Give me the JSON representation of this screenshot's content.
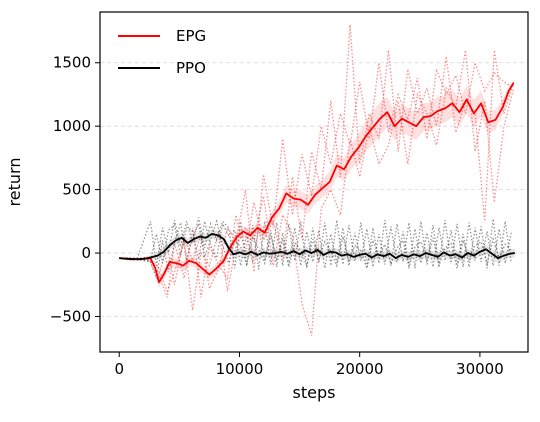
{
  "chart_data": {
    "type": "line",
    "title": "",
    "xlabel": "steps",
    "ylabel": "return",
    "xlim": [
      -1600,
      34000
    ],
    "ylim": [
      -780,
      1900
    ],
    "xticks": [
      0,
      10000,
      20000,
      30000
    ],
    "xtick_labels": [
      "0",
      "10000",
      "20000",
      "30000"
    ],
    "yticks": [
      -500,
      0,
      500,
      1000,
      1500
    ],
    "ytick_labels": [
      "−500",
      "0",
      "500",
      "1000",
      "1500"
    ],
    "grid": "horizontal dashed",
    "legend_position": "top-left",
    "series": [
      {
        "name": "EPG",
        "color": "#ff0000",
        "x": [
          0,
          1000,
          2000,
          2600,
          3000,
          3300,
          3700,
          4200,
          4800,
          5300,
          5800,
          6400,
          7000,
          7500,
          8100,
          8700,
          9200,
          9800,
          10300,
          10900,
          11500,
          12100,
          12700,
          13300,
          13900,
          14500,
          15100,
          15700,
          16300,
          16900,
          17500,
          18100,
          18700,
          19300,
          19900,
          20500,
          21100,
          21700,
          22300,
          22900,
          23500,
          24100,
          24700,
          25300,
          25900,
          26500,
          27100,
          27700,
          28300,
          28900,
          29500,
          30100,
          30700,
          31300,
          31900,
          32400,
          32800
        ],
        "values": [
          -40,
          -50,
          -45,
          -40,
          -120,
          -230,
          -170,
          -70,
          -80,
          -100,
          -60,
          -80,
          -130,
          -170,
          -120,
          -60,
          40,
          130,
          170,
          140,
          200,
          160,
          280,
          350,
          470,
          430,
          420,
          380,
          460,
          510,
          560,
          690,
          660,
          760,
          830,
          920,
          990,
          1060,
          1110,
          1000,
          1060,
          1030,
          1000,
          1070,
          1080,
          1120,
          1140,
          1180,
          1110,
          1210,
          1100,
          1180,
          1030,
          1050,
          1150,
          1280,
          1340
        ],
        "band_half_width": [
          10,
          10,
          10,
          15,
          25,
          40,
          40,
          40,
          40,
          40,
          40,
          40,
          40,
          40,
          40,
          40,
          40,
          45,
          45,
          45,
          45,
          45,
          50,
          60,
          70,
          70,
          70,
          70,
          70,
          70,
          80,
          90,
          90,
          100,
          110,
          120,
          130,
          130,
          120,
          110,
          110,
          110,
          110,
          110,
          110,
          110,
          110,
          110,
          110,
          110,
          110,
          100,
          90,
          80,
          60,
          40,
          20
        ]
      },
      {
        "name": "PPO",
        "color": "#000000",
        "x": [
          0,
          800,
          1600,
          2400,
          2800,
          3200,
          3700,
          4200,
          4700,
          5200,
          5700,
          6200,
          6700,
          7200,
          7700,
          8200,
          8700,
          9100,
          9500,
          10000,
          10500,
          11000,
          11500,
          12000,
          12500,
          13000,
          13500,
          14000,
          14500,
          15000,
          15500,
          16000,
          16500,
          17000,
          17500,
          18000,
          18500,
          19000,
          19500,
          20000,
          20500,
          21000,
          21500,
          22000,
          22500,
          23000,
          23500,
          24000,
          24500,
          25000,
          25500,
          26000,
          26500,
          27000,
          27500,
          28000,
          28500,
          29000,
          29500,
          30000,
          30500,
          31000,
          31500,
          32000,
          32500,
          32900
        ],
        "values": [
          -40,
          -45,
          -50,
          -40,
          -30,
          -20,
          10,
          60,
          100,
          120,
          80,
          110,
          130,
          120,
          150,
          140,
          110,
          40,
          -10,
          5,
          -10,
          10,
          -15,
          5,
          -5,
          0,
          10,
          -5,
          15,
          -10,
          20,
          0,
          25,
          -15,
          10,
          5,
          -20,
          -10,
          -30,
          -15,
          -5,
          -35,
          -10,
          -25,
          -5,
          -40,
          -15,
          -30,
          -10,
          -25,
          0,
          -15,
          -30,
          5,
          -20,
          -10,
          -35,
          0,
          -20,
          10,
          30,
          -5,
          -40,
          -20,
          -5,
          0
        ],
        "band_half_width": [
          5,
          5,
          5,
          10,
          20,
          30,
          35,
          35,
          35,
          35,
          35,
          35,
          35,
          35,
          35,
          35,
          35,
          35,
          35,
          35,
          35,
          35,
          35,
          35,
          35,
          35,
          35,
          35,
          35,
          35,
          35,
          35,
          35,
          35,
          35,
          35,
          35,
          35,
          35,
          35,
          35,
          35,
          35,
          35,
          35,
          35,
          35,
          35,
          35,
          35,
          35,
          35,
          35,
          35,
          35,
          35,
          35,
          35,
          35,
          35,
          35,
          35,
          35,
          35,
          35,
          35
        ]
      }
    ],
    "individual_runs": [
      {
        "group": "EPG",
        "color": "#ff0000",
        "x": [
          0,
          1500,
          2500,
          3200,
          4000,
          4600,
          5400,
          6100,
          6800,
          7500,
          8300,
          9000,
          9700,
          10500,
          11200,
          12000,
          12800,
          13600,
          14400,
          15200,
          16000,
          16800,
          17600,
          18400,
          19200,
          20000,
          20800,
          21600,
          22400,
          23200,
          24000,
          24800,
          25600,
          26400,
          27200,
          28000,
          28800,
          29600,
          30400,
          31200,
          32000,
          32800
        ],
        "values": [
          -40,
          -45,
          -50,
          -200,
          50,
          -250,
          120,
          -60,
          150,
          -280,
          -120,
          200,
          100,
          500,
          -150,
          620,
          200,
          900,
          300,
          780,
          450,
          1000,
          700,
          1100,
          850,
          1350,
          900,
          1500,
          950,
          1250,
          1050,
          1380,
          900,
          1450,
          1250,
          1400,
          1100,
          1500,
          1280,
          1420,
          1350,
          1300
        ]
      },
      {
        "group": "EPG",
        "color": "#ff0000",
        "x": [
          0,
          1500,
          2500,
          3200,
          4000,
          4600,
          5400,
          6100,
          6800,
          7500,
          8300,
          9000,
          9700,
          10500,
          11200,
          12000,
          12800,
          13600,
          14400,
          15200,
          16000,
          16800,
          17600,
          18400,
          19200,
          20000,
          20800,
          21600,
          22400,
          23200,
          24000,
          24800,
          25600,
          26400,
          27200,
          28000,
          28800,
          29600,
          30400,
          31200,
          32000,
          32800
        ],
        "values": [
          -40,
          -40,
          -30,
          -150,
          -350,
          80,
          -200,
          200,
          -350,
          50,
          -100,
          -200,
          300,
          0,
          400,
          100,
          250,
          -50,
          600,
          100,
          800,
          500,
          1200,
          600,
          1800,
          700,
          1100,
          900,
          1600,
          800,
          1450,
          1100,
          1300,
          1000,
          1550,
          950,
          1200,
          1100,
          250,
          1600,
          1100,
          1350
        ]
      },
      {
        "group": "EPG",
        "color": "#ff0000",
        "x": [
          0,
          1500,
          2500,
          3200,
          4000,
          4600,
          5400,
          6100,
          6800,
          7500,
          8300,
          9000,
          9700,
          10500,
          11200,
          12000,
          12800,
          13600,
          14400,
          15200,
          16000,
          16800,
          17600,
          18400,
          19200,
          20000,
          20800,
          21600,
          22400,
          23200,
          24000,
          24800,
          25600,
          26400,
          27200,
          28000,
          28800,
          29600,
          30400,
          31200,
          32000,
          32800
        ],
        "values": [
          -40,
          -50,
          -60,
          -100,
          -300,
          -150,
          100,
          -450,
          0,
          -100,
          180,
          -300,
          50,
          200,
          100,
          450,
          -100,
          300,
          150,
          -400,
          -650,
          350,
          500,
          300,
          900,
          600,
          1000,
          700,
          850,
          1200,
          700,
          1250,
          1100,
          850,
          1300,
          1150,
          1600,
          800,
          1200,
          400,
          1000,
          1300
        ]
      },
      {
        "group": "PPO",
        "color": "#404040",
        "x": [
          0,
          1500,
          2600,
          3100,
          3600,
          4100,
          4600,
          5100,
          5600,
          6100,
          6600,
          7100,
          7600,
          8100,
          8600,
          9100,
          9600,
          10100,
          10600,
          11100,
          11600,
          12100,
          12600,
          13100,
          13600,
          14100,
          14600,
          15100,
          15600,
          16100,
          16600,
          17100,
          17600,
          18100,
          18600,
          19100,
          19600,
          20100,
          20600,
          21100,
          21600,
          22100,
          22600,
          23100,
          23600,
          24100,
          24600,
          25100,
          25600,
          26100,
          26600,
          27100,
          27600,
          28100,
          28600,
          29100,
          29600,
          30100,
          30600,
          31100,
          31600,
          32100,
          32600
        ],
        "values": [
          -40,
          -40,
          250,
          -100,
          200,
          0,
          260,
          50,
          250,
          80,
          280,
          40,
          230,
          100,
          250,
          200,
          -120,
          250,
          -100,
          220,
          -130,
          250,
          -90,
          240,
          -100,
          230,
          -60,
          250,
          -120,
          200,
          -80,
          240,
          -100,
          260,
          -90,
          220,
          -60,
          240,
          -110,
          200,
          -80,
          260,
          -100,
          230,
          -70,
          240,
          -120,
          250,
          -90,
          220,
          -100,
          260,
          -80,
          230,
          -110,
          240,
          -60,
          210,
          -120,
          270,
          -100,
          250,
          -80
        ]
      },
      {
        "group": "PPO",
        "color": "#404040",
        "x": [
          0,
          1500,
          2600,
          3100,
          3600,
          4100,
          4600,
          5100,
          5600,
          6100,
          6600,
          7100,
          7600,
          8100,
          8600,
          9100,
          9600,
          10100,
          10600,
          11100,
          11600,
          12100,
          12600,
          13100,
          13600,
          14100,
          14600,
          15100,
          15600,
          16100,
          16600,
          17100,
          17600,
          18100,
          18600,
          19100,
          19600,
          20100,
          20600,
          21100,
          21600,
          22100,
          22600,
          23100,
          23600,
          24100,
          24600,
          25100,
          25600,
          26100,
          26600,
          27100,
          27600,
          28100,
          28600,
          29100,
          29600,
          30100,
          30600,
          31100,
          31600,
          32100,
          32600
        ],
        "values": [
          -40,
          -45,
          -60,
          150,
          -80,
          180,
          220,
          -20,
          200,
          180,
          -50,
          250,
          60,
          -40,
          230,
          140,
          180,
          -100,
          150,
          -80,
          200,
          -60,
          180,
          -110,
          160,
          -90,
          200,
          -100,
          170,
          -70,
          180,
          -120,
          150,
          -80,
          200,
          -100,
          160,
          -60,
          190,
          -110,
          150,
          -90,
          210,
          -70,
          170,
          -100,
          190,
          -80,
          160,
          -110,
          200,
          -60,
          180,
          -90,
          150,
          -110,
          200,
          -70,
          170,
          -100,
          190,
          -80,
          160
        ]
      },
      {
        "group": "PPO",
        "color": "#404040",
        "x": [
          0,
          1500,
          2600,
          3100,
          3600,
          4100,
          4600,
          5100,
          5600,
          6100,
          6600,
          7100,
          7600,
          8100,
          8600,
          9100,
          9600,
          10100,
          10600,
          11100,
          11600,
          12100,
          12600,
          13100,
          13600,
          14100,
          14600,
          15100,
          15600,
          16100,
          16600,
          17100,
          17600,
          18100,
          18600,
          19100,
          19600,
          20100,
          20600,
          21100,
          21600,
          22100,
          22600,
          23100,
          23600,
          24100,
          24600,
          25100,
          25600,
          26100,
          26600,
          27100,
          27600,
          28100,
          28600,
          29100,
          29600,
          30100,
          30600,
          31100,
          31600,
          32100,
          32600
        ],
        "values": [
          -40,
          -50,
          -70,
          -200,
          100,
          -150,
          80,
          240,
          -60,
          120,
          230,
          -30,
          100,
          250,
          60,
          -80,
          100,
          50,
          -90,
          120,
          30,
          -80,
          140,
          -50,
          100,
          -110,
          80,
          20,
          -100,
          110,
          -60,
          90,
          10,
          -100,
          130,
          -70,
          60,
          20,
          -120,
          100,
          -30,
          70,
          -90,
          40,
          100,
          -110,
          50,
          90,
          -60,
          120,
          -100,
          40,
          80,
          -120,
          100,
          -50,
          60,
          90,
          -80,
          110,
          -40,
          70,
          20
        ]
      }
    ]
  }
}
